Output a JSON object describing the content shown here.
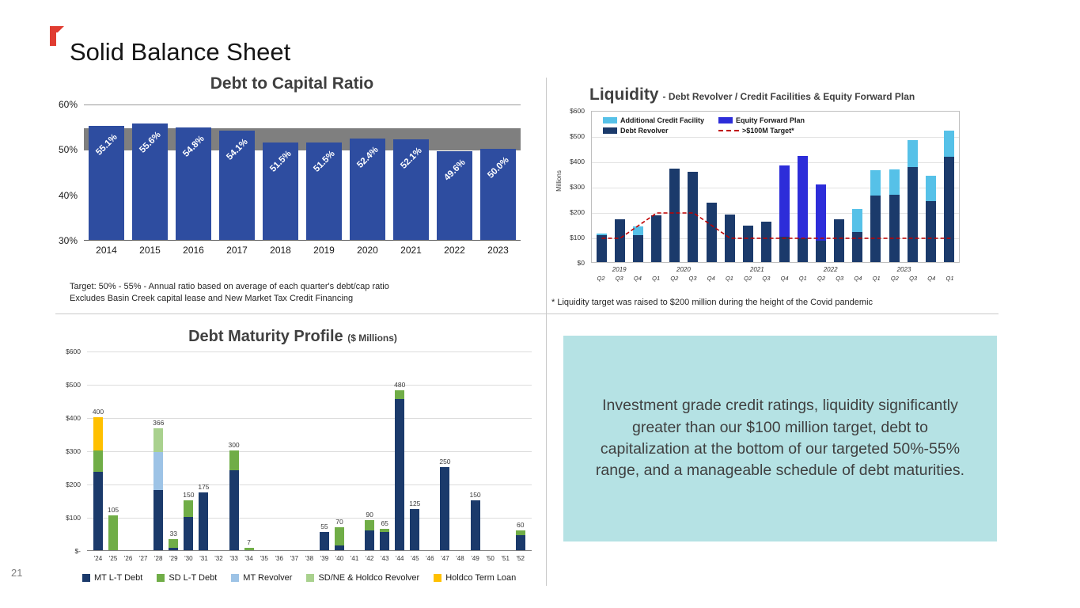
{
  "page": {
    "title": "Solid Balance Sheet",
    "number": "21"
  },
  "colors": {
    "accent_red": "#e03c31",
    "bar_blue": "#2e4da0",
    "navy": "#1b3a6b",
    "bright_blue": "#2d2dd9",
    "light_blue": "#56c1e8",
    "green": "#70ad47",
    "pale_blue": "#9dc3e6",
    "pale_green": "#a9d18e",
    "yellow": "#ffc000",
    "target_red": "#c00000",
    "band_gray": "#7f7f7f",
    "callout_bg": "#b5e2e4",
    "callout_text": "#404040"
  },
  "callout": {
    "text": "Investment grade credit ratings, liquidity significantly greater than our $100 million target, debt to capitalization at the bottom of our targeted 50%-55% range, and a manageable schedule of debt maturities."
  },
  "chart_data": [
    {
      "id": "debt_to_capital",
      "type": "bar",
      "title": "Debt to Capital Ratio",
      "categories": [
        "2014",
        "2015",
        "2016",
        "2017",
        "2018",
        "2019",
        "2020",
        "2021",
        "2022",
        "2023"
      ],
      "values": [
        55.1,
        55.6,
        54.8,
        54.1,
        51.5,
        51.5,
        52.4,
        52.1,
        49.6,
        50.0
      ],
      "value_labels": [
        "55.1%",
        "55.6%",
        "54.8%",
        "54.1%",
        "51.5%",
        "51.5%",
        "52.4%",
        "52.1%",
        "49.6%",
        "50.0%"
      ],
      "ylim": [
        30,
        60
      ],
      "yticks": [
        {
          "label": "60%",
          "v": 60
        },
        {
          "label": "50%",
          "v": 50
        },
        {
          "label": "40%",
          "v": 40
        },
        {
          "label": "30%",
          "v": 30
        }
      ],
      "target_band": [
        50,
        55
      ],
      "footnotes": [
        "Target:  50% - 55% - Annual ratio based on average of each quarter's debt/cap ratio",
        "Excludes Basin Creek capital lease and New Market Tax Credit Financing"
      ]
    },
    {
      "id": "liquidity",
      "type": "stacked_bar_with_line",
      "title": "Liquidity",
      "subtitle": "- Debt Revolver / Credit Facilities & Equity Forward Plan",
      "ylabel": "Millions",
      "ylim": [
        0,
        600
      ],
      "yticks": [
        {
          "label": "$600",
          "v": 600
        },
        {
          "label": "$500",
          "v": 500
        },
        {
          "label": "$400",
          "v": 400
        },
        {
          "label": "$300",
          "v": 300
        },
        {
          "label": "$200",
          "v": 200
        },
        {
          "label": "$100",
          "v": 100
        },
        {
          "label": "$0",
          "v": 0
        }
      ],
      "quarters": [
        "Q2",
        "Q3",
        "Q4",
        "Q1",
        "Q2",
        "Q3",
        "Q4",
        "Q1",
        "Q2",
        "Q3",
        "Q4",
        "Q1",
        "Q2",
        "Q3",
        "Q4",
        "Q1",
        "Q2",
        "Q3",
        "Q4",
        "Q1"
      ],
      "years": [
        {
          "label": "2019",
          "pos": 1
        },
        {
          "label": "2020",
          "pos": 4.5
        },
        {
          "label": "2021",
          "pos": 8.5
        },
        {
          "label": "2022",
          "pos": 12.5
        },
        {
          "label": "2023",
          "pos": 16.5
        }
      ],
      "series": [
        {
          "name": "Debt Revolver",
          "color_key": "navy",
          "values": [
            105,
            170,
            105,
            185,
            368,
            355,
            233,
            188,
            143,
            160,
            100,
            95,
            85,
            170,
            120,
            262,
            265,
            375,
            240,
            415
          ]
        },
        {
          "name": "Equity Forward Plan",
          "color_key": "bright_blue",
          "values": [
            0,
            0,
            0,
            0,
            0,
            0,
            0,
            0,
            0,
            0,
            280,
            325,
            220,
            0,
            0,
            0,
            0,
            0,
            0,
            0
          ]
        },
        {
          "name": "Additional Credit Facility",
          "color_key": "light_blue",
          "values": [
            8,
            0,
            35,
            0,
            0,
            0,
            0,
            0,
            0,
            0,
            0,
            0,
            0,
            0,
            90,
            100,
            100,
            105,
            100,
            105
          ]
        }
      ],
      "target_line": {
        "name": ">$100M Target*",
        "values": [
          100,
          100,
          150,
          200,
          200,
          200,
          150,
          100,
          100,
          100,
          100,
          100,
          100,
          100,
          100,
          100,
          100,
          100,
          100,
          100
        ]
      },
      "legend": [
        {
          "label": "Additional Credit Facility",
          "color_key": "light_blue",
          "style": "box"
        },
        {
          "label": "Equity Forward Plan",
          "color_key": "bright_blue",
          "style": "box"
        },
        {
          "label": "Debt Revolver",
          "color_key": "navy",
          "style": "box"
        },
        {
          "label": ">$100M Target*",
          "color_key": "target_red",
          "style": "dash"
        }
      ],
      "footnote": "* Liquidity target was raised to $200 million during the height of the Covid pandemic"
    },
    {
      "id": "debt_maturity",
      "type": "stacked_bar",
      "title": "Debt Maturity Profile",
      "subtitle": "($ Millions)",
      "ylim": [
        0,
        600
      ],
      "yticks": [
        {
          "label": "$600",
          "v": 600
        },
        {
          "label": "$500",
          "v": 500
        },
        {
          "label": "$400",
          "v": 400
        },
        {
          "label": "$300",
          "v": 300
        },
        {
          "label": "$200",
          "v": 200
        },
        {
          "label": "$100",
          "v": 100
        },
        {
          "label": "$-",
          "v": 0
        }
      ],
      "categories": [
        "'24",
        "'25",
        "'26",
        "'27",
        "'28",
        "'29",
        "'30",
        "'31",
        "'32",
        "'33",
        "'34",
        "'35",
        "'36",
        "'37",
        "'38",
        "'39",
        "'40",
        "'41",
        "'42",
        "'43",
        "'44",
        "'45",
        "'46",
        "'47",
        "'48",
        "'49",
        "'50",
        "'51",
        "'52"
      ],
      "series": [
        {
          "name": "MT L-T Debt",
          "color_key": "navy",
          "values": [
            235,
            0,
            0,
            0,
            180,
            8,
            100,
            175,
            0,
            240,
            0,
            0,
            0,
            0,
            0,
            55,
            15,
            0,
            60,
            55,
            455,
            125,
            0,
            250,
            0,
            150,
            0,
            0,
            45
          ]
        },
        {
          "name": "SD L-T Debt",
          "color_key": "green",
          "values": [
            65,
            105,
            0,
            0,
            0,
            25,
            50,
            0,
            0,
            60,
            7,
            0,
            0,
            0,
            0,
            0,
            55,
            0,
            30,
            10,
            25,
            0,
            0,
            0,
            0,
            0,
            0,
            0,
            15
          ]
        },
        {
          "name": "MT Revolver",
          "color_key": "pale_blue",
          "values": [
            0,
            0,
            0,
            0,
            115,
            0,
            0,
            0,
            0,
            0,
            0,
            0,
            0,
            0,
            0,
            0,
            0,
            0,
            0,
            0,
            0,
            0,
            0,
            0,
            0,
            0,
            0,
            0,
            0
          ]
        },
        {
          "name": "SD/NE & Holdco Revolver",
          "color_key": "pale_green",
          "values": [
            0,
            0,
            0,
            0,
            71,
            0,
            0,
            0,
            0,
            0,
            0,
            0,
            0,
            0,
            0,
            0,
            0,
            0,
            0,
            0,
            0,
            0,
            0,
            0,
            0,
            0,
            0,
            0,
            0
          ]
        },
        {
          "name": "Holdco Term Loan",
          "color_key": "yellow",
          "values": [
            100,
            0,
            0,
            0,
            0,
            0,
            0,
            0,
            0,
            0,
            0,
            0,
            0,
            0,
            0,
            0,
            0,
            0,
            0,
            0,
            0,
            0,
            0,
            0,
            0,
            0,
            0,
            0,
            0
          ]
        }
      ],
      "bar_labels": [
        "400",
        "105",
        null,
        null,
        "366",
        "33",
        "150",
        "175",
        null,
        "300",
        "7",
        null,
        null,
        null,
        null,
        "55",
        "70",
        null,
        "90",
        "65",
        "480",
        "125",
        null,
        "250",
        null,
        "150",
        null,
        null,
        "60"
      ]
    }
  ]
}
